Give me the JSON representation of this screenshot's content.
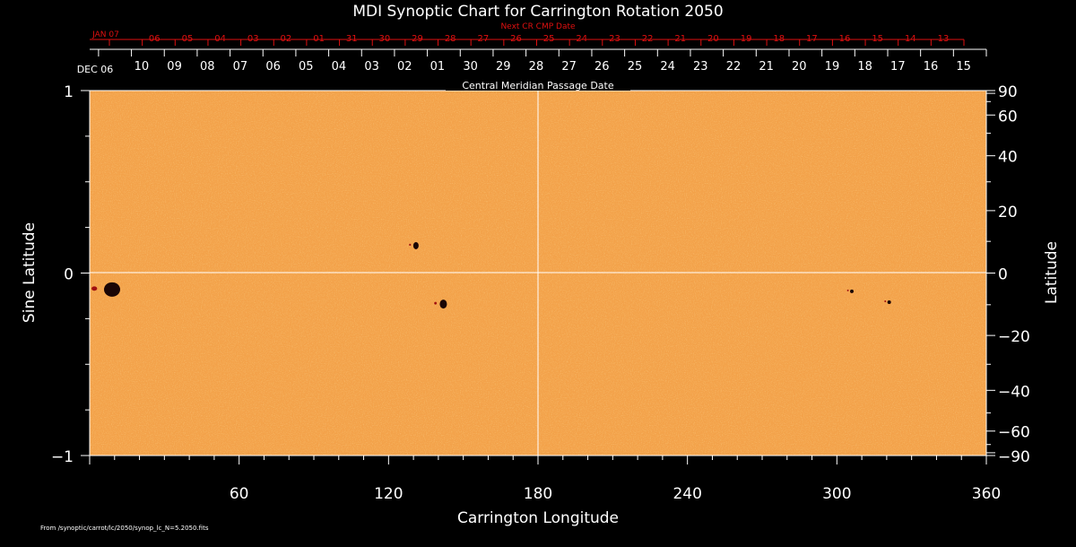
{
  "chart_data": {
    "type": "heatmap",
    "title": "MDI Synoptic Chart for Carrington Rotation 2050",
    "xlabel": "Carrington Longitude",
    "ylabel_left": "Sine Latitude",
    "ylabel_right": "Latitude",
    "xlim": [
      0,
      360
    ],
    "ylim_sine": [
      -1,
      1
    ],
    "x_ticks": [
      60,
      120,
      180,
      240,
      300,
      360
    ],
    "y_left_ticks": [
      {
        "value": 1,
        "label": "1"
      },
      {
        "value": 0,
        "label": "0"
      },
      {
        "value": -1,
        "label": "−1"
      }
    ],
    "y_right_ticks": [
      {
        "deg": 90,
        "label": "90"
      },
      {
        "deg": 60,
        "label": "60"
      },
      {
        "deg": 40,
        "label": "40"
      },
      {
        "deg": 20,
        "label": "20"
      },
      {
        "deg": 0,
        "label": "0"
      },
      {
        "deg": -20,
        "label": "−20"
      },
      {
        "deg": -40,
        "label": "−40"
      },
      {
        "deg": -60,
        "label": "−60"
      },
      {
        "deg": -90,
        "label": "−90"
      }
    ],
    "cmp_axis_label": "Central Meridian Passage Date",
    "cmp_start_label": "DEC 06",
    "cmp_dates": [
      "10",
      "09",
      "08",
      "07",
      "06",
      "05",
      "04",
      "03",
      "02",
      "01",
      "30",
      "29",
      "28",
      "27",
      "26",
      "25",
      "24",
      "23",
      "22",
      "21",
      "20",
      "19",
      "18",
      "17",
      "16",
      "15"
    ],
    "next_cr_label": "Next CR CMP Date",
    "next_cr_start": "JAN 07",
    "next_cr_dates": [
      "06",
      "05",
      "04",
      "03",
      "02",
      "01",
      "31",
      "30",
      "29",
      "28",
      "27",
      "26",
      "25",
      "24",
      "23",
      "22",
      "21",
      "20",
      "19",
      "18",
      "17",
      "16",
      "15",
      "14",
      "13"
    ],
    "grid": "center cross",
    "colors": {
      "background": "#f3a24a",
      "spot": "#1a0505",
      "frame": "#ffffff",
      "next_cr": "#e01010"
    },
    "sunspots": [
      {
        "lon": 9,
        "sinlat": -0.09,
        "size": "large"
      },
      {
        "lon": 131,
        "sinlat": 0.15,
        "size": "small"
      },
      {
        "lon": 142,
        "sinlat": -0.17,
        "size": "medium"
      },
      {
        "lon": 306,
        "sinlat": -0.1,
        "size": "tiny"
      },
      {
        "lon": 321,
        "sinlat": -0.16,
        "size": "tiny"
      }
    ]
  },
  "source": "From /synoptic/carrot/lc/2050/synop_lc_N=5.2050.fits"
}
